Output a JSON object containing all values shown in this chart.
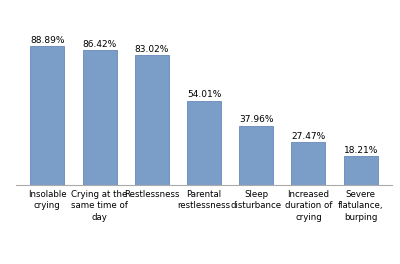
{
  "categories": [
    "Insolable\ncrying",
    "Crying at the\nsame time of\nday",
    "Restlessness",
    "Parental\nrestlessness",
    "Sleep\ndisturbance",
    "Increased\nduration of\ncrying",
    "Severe\nflatulance,\nburping"
  ],
  "values": [
    88.89,
    86.42,
    83.02,
    54.01,
    37.96,
    27.47,
    18.21
  ],
  "bar_color": "#7b9ec9",
  "bar_edgecolor": "#6688b8",
  "value_labels": [
    "88.89%",
    "86.42%",
    "83.02%",
    "54.01%",
    "37.96%",
    "27.47%",
    "18.21%"
  ],
  "ylim": [
    0,
    105
  ],
  "background_color": "#ffffff",
  "label_fontsize": 6.2,
  "value_fontsize": 6.5,
  "bar_width": 0.65,
  "figsize": [
    4.0,
    2.64
  ],
  "dpi": 100
}
